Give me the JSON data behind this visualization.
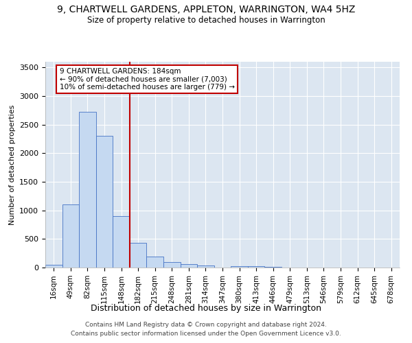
{
  "title1": "9, CHARTWELL GARDENS, APPLETON, WARRINGTON, WA4 5HZ",
  "title2": "Size of property relative to detached houses in Warrington",
  "xlabel": "Distribution of detached houses by size in Warrington",
  "ylabel": "Number of detached properties",
  "categories": [
    "16sqm",
    "49sqm",
    "82sqm",
    "115sqm",
    "148sqm",
    "182sqm",
    "215sqm",
    "248sqm",
    "281sqm",
    "314sqm",
    "347sqm",
    "380sqm",
    "413sqm",
    "446sqm",
    "479sqm",
    "513sqm",
    "546sqm",
    "579sqm",
    "612sqm",
    "645sqm",
    "678sqm"
  ],
  "values": [
    50,
    1100,
    2720,
    2300,
    900,
    430,
    190,
    100,
    55,
    40,
    0,
    30,
    20,
    10,
    0,
    0,
    0,
    0,
    0,
    0,
    0
  ],
  "bar_color": "#c5d9f1",
  "bar_edge_color": "#4472c4",
  "vline_x": 4.5,
  "vline_color": "#c00000",
  "annotation_line1": "9 CHARTWELL GARDENS: 184sqm",
  "annotation_line2": "← 90% of detached houses are smaller (7,003)",
  "annotation_line3": "10% of semi-detached houses are larger (779) →",
  "annotation_box_color": "#ffffff",
  "annotation_box_edge": "#c00000",
  "ylim": [
    0,
    3600
  ],
  "yticks": [
    0,
    500,
    1000,
    1500,
    2000,
    2500,
    3000,
    3500
  ],
  "bg_color": "#dce6f1",
  "footer1": "Contains HM Land Registry data © Crown copyright and database right 2024.",
  "footer2": "Contains public sector information licensed under the Open Government Licence v3.0."
}
